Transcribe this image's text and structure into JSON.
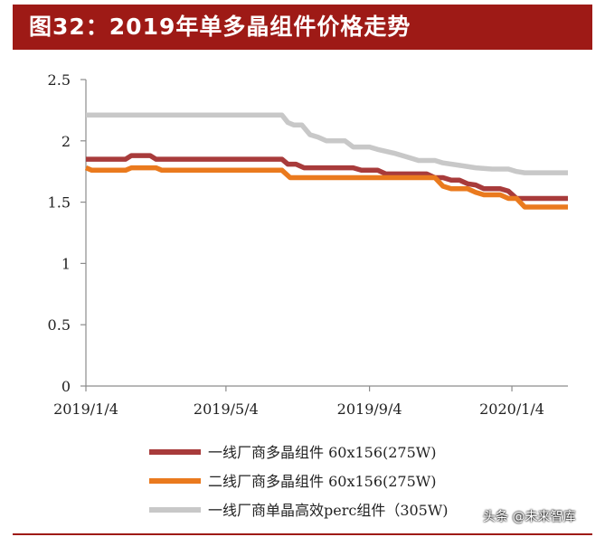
{
  "header": {
    "title": "图32：2019年单多晶组件价格走势"
  },
  "watermark": {
    "text": "头条 @未来智库"
  },
  "chart_data": {
    "type": "line",
    "title": "图32：2019年单多晶组件价格走势",
    "xlabel": "",
    "ylabel": "",
    "ylim": [
      0,
      2.5
    ],
    "yticks": [
      "0",
      "0.5",
      "1",
      "1.5",
      "2",
      "2.5"
    ],
    "yticks_values": [
      0,
      0.5,
      1,
      1.5,
      2,
      2.5
    ],
    "x_start": "2019/1/4",
    "x_end": "2020/2/21",
    "xticks": [
      "2019/1/4",
      "2019/5/4",
      "2019/9/4",
      "2020/1/4"
    ],
    "grid": false,
    "legend_position": "bottom",
    "series": [
      {
        "name": "一线厂商多晶组件 60x156(275W)",
        "color": "#a83b3b",
        "points": [
          [
            "2019/1/4",
            1.85
          ],
          [
            "2019/2/7",
            1.85
          ],
          [
            "2019/2/12",
            1.88
          ],
          [
            "2019/2/28",
            1.88
          ],
          [
            "2019/3/5",
            1.85
          ],
          [
            "2019/6/21",
            1.85
          ],
          [
            "2019/6/26",
            1.81
          ],
          [
            "2019/7/3",
            1.81
          ],
          [
            "2019/7/10",
            1.78
          ],
          [
            "2019/8/21",
            1.78
          ],
          [
            "2019/8/28",
            1.76
          ],
          [
            "2019/9/11",
            1.76
          ],
          [
            "2019/9/18",
            1.73
          ],
          [
            "2019/10/23",
            1.73
          ],
          [
            "2019/10/30",
            1.7
          ],
          [
            "2019/11/6",
            1.7
          ],
          [
            "2019/11/13",
            1.68
          ],
          [
            "2019/11/20",
            1.68
          ],
          [
            "2019/11/27",
            1.65
          ],
          [
            "2019/12/4",
            1.64
          ],
          [
            "2019/12/11",
            1.61
          ],
          [
            "2019/12/25",
            1.61
          ],
          [
            "2020/1/1",
            1.59
          ],
          [
            "2020/1/8",
            1.53
          ],
          [
            "2020/2/21",
            1.53
          ]
        ]
      },
      {
        "name": "二线厂商多晶组件 60x156(275W)",
        "color": "#ea7a1e",
        "points": [
          [
            "2019/1/4",
            1.78
          ],
          [
            "2019/1/9",
            1.76
          ],
          [
            "2019/2/7",
            1.76
          ],
          [
            "2019/2/12",
            1.78
          ],
          [
            "2019/3/5",
            1.78
          ],
          [
            "2019/3/10",
            1.76
          ],
          [
            "2019/6/21",
            1.76
          ],
          [
            "2019/6/28",
            1.7
          ],
          [
            "2019/10/30",
            1.7
          ],
          [
            "2019/11/6",
            1.63
          ],
          [
            "2019/11/13",
            1.61
          ],
          [
            "2019/11/27",
            1.61
          ],
          [
            "2019/12/4",
            1.58
          ],
          [
            "2019/12/11",
            1.56
          ],
          [
            "2019/12/25",
            1.56
          ],
          [
            "2020/1/1",
            1.53
          ],
          [
            "2020/1/8",
            1.53
          ],
          [
            "2020/1/15",
            1.46
          ],
          [
            "2020/2/21",
            1.46
          ]
        ]
      },
      {
        "name": "一线厂商单晶高效perc组件（305W)",
        "color": "#c8c8c8",
        "points": [
          [
            "2019/1/4",
            2.21
          ],
          [
            "2019/6/21",
            2.21
          ],
          [
            "2019/6/26",
            2.15
          ],
          [
            "2019/7/1",
            2.13
          ],
          [
            "2019/7/8",
            2.13
          ],
          [
            "2019/7/15",
            2.05
          ],
          [
            "2019/7/22",
            2.03
          ],
          [
            "2019/7/29",
            2.0
          ],
          [
            "2019/8/14",
            2.0
          ],
          [
            "2019/8/21",
            1.95
          ],
          [
            "2019/9/4",
            1.95
          ],
          [
            "2019/9/11",
            1.93
          ],
          [
            "2019/9/25",
            1.9
          ],
          [
            "2019/10/9",
            1.86
          ],
          [
            "2019/10/16",
            1.84
          ],
          [
            "2019/10/30",
            1.84
          ],
          [
            "2019/11/6",
            1.82
          ],
          [
            "2019/11/20",
            1.8
          ],
          [
            "2019/12/4",
            1.78
          ],
          [
            "2019/12/18",
            1.77
          ],
          [
            "2020/1/1",
            1.77
          ],
          [
            "2020/1/8",
            1.75
          ],
          [
            "2020/1/15",
            1.74
          ],
          [
            "2020/2/21",
            1.74
          ]
        ]
      }
    ]
  }
}
